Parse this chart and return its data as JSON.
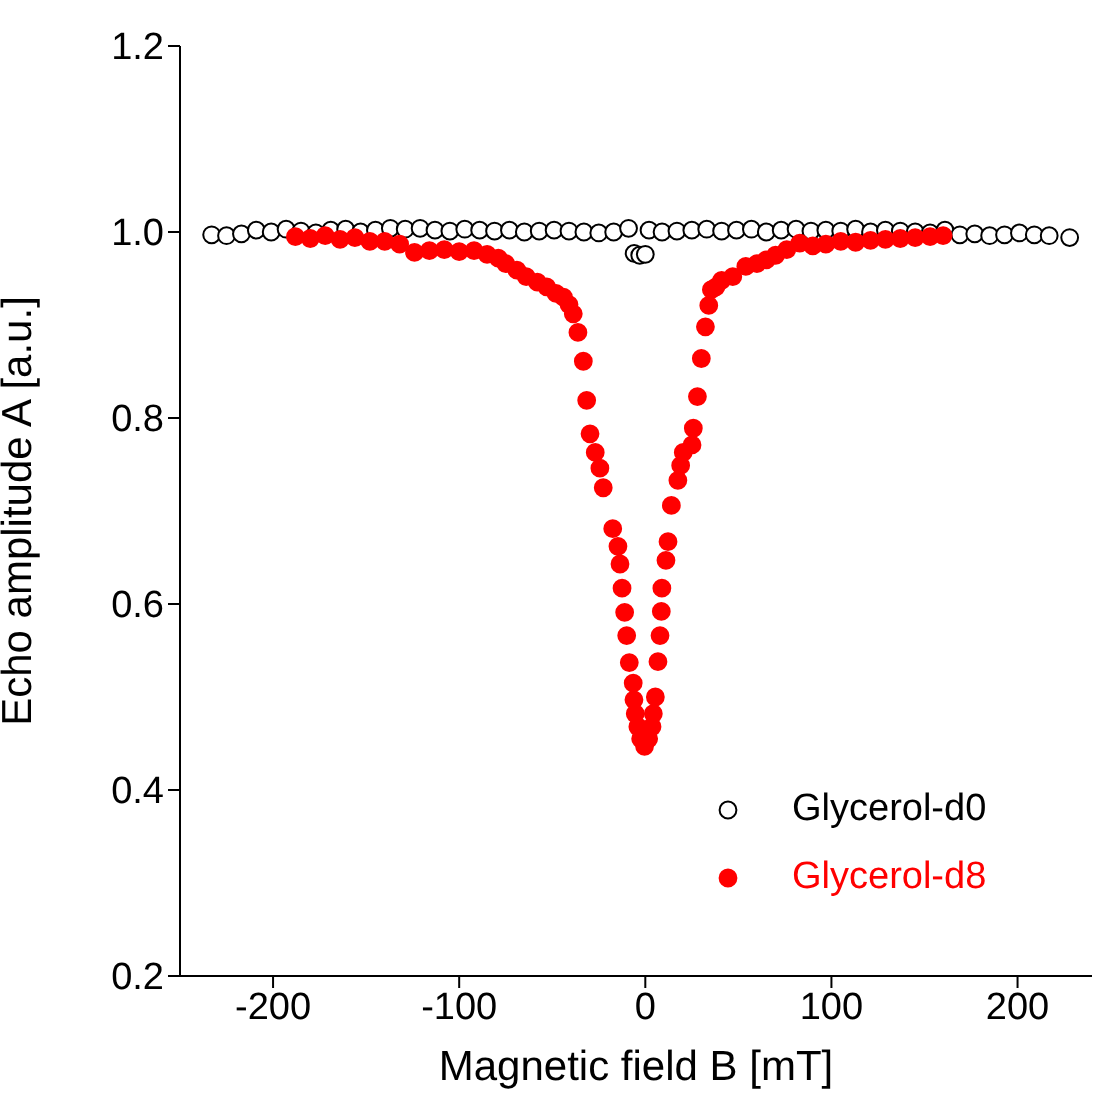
{
  "chart_data": {
    "type": "scatter",
    "xlabel": "Magnetic field B [mT]",
    "ylabel": "Echo amplitude A [a.u.]",
    "xlim": [
      -250,
      240
    ],
    "xticks": [
      -200,
      -100,
      0,
      100,
      200
    ],
    "ylim": [
      0.2,
      1.2
    ],
    "yticks": [
      0.2,
      0.4,
      0.6,
      0.8,
      {
        "value": 1,
        "label": "1.0"
      },
      1.2
    ],
    "marker": "circle",
    "legend": "bottom right",
    "grid": false,
    "series": [
      {
        "name": "Glycerol-d0",
        "color": "#000000",
        "x": [
          -233,
          -225,
          -217,
          -209,
          -201,
          -193,
          -185,
          -177,
          -169,
          -161,
          -153,
          -145,
          -137,
          -129,
          -121,
          -113,
          -105,
          -97,
          -89,
          -81,
          -73,
          -65,
          -57,
          -49,
          -41,
          -33,
          -25,
          -17,
          -9,
          -6,
          -3,
          0,
          2,
          9,
          17,
          25,
          33,
          41,
          49,
          57,
          65,
          73,
          81,
          89,
          97,
          105,
          113,
          121,
          129,
          137,
          145,
          153,
          161,
          169,
          177,
          185,
          193,
          201,
          209,
          217,
          228
        ],
        "values": [
          0.997,
          0.996,
          0.998,
          1.002,
          1.0,
          1.003,
          1.001,
          0.999,
          1.002,
          1.003,
          1.0,
          1.002,
          1.004,
          1.003,
          1.004,
          1.002,
          1.001,
          1.003,
          1.002,
          1.001,
          1.002,
          1.0,
          1.001,
          1.002,
          1.001,
          1.0,
          0.999,
          1.0,
          1.004,
          0.977,
          0.975,
          0.976,
          1.002,
          1.0,
          1.001,
          1.002,
          1.003,
          1.001,
          1.002,
          1.003,
          1.0,
          1.002,
          1.003,
          1.001,
          1.002,
          1.001,
          1.003,
          1.0,
          1.002,
          1.001,
          1.0,
          0.999,
          1.002,
          0.997,
          0.998,
          0.996,
          0.997,
          0.999,
          0.997,
          0.996,
          0.994
        ]
      },
      {
        "name": "Glycerol-d8",
        "color": "#ff0000",
        "x": [
          -188,
          -180,
          -172,
          -164,
          -156,
          -148,
          -140,
          -132,
          -124,
          -116,
          -108,
          -100,
          -92,
          -85,
          -79,
          -75,
          -69,
          -64,
          -58,
          -53,
          -48,
          -44,
          -41,
          -38.7,
          -36.2,
          -33.3,
          -31.5,
          -29.7,
          -26.9,
          -24.4,
          -22.6,
          -17.5,
          -14.7,
          -13.6,
          -12.5,
          -11.1,
          -10,
          -8.6,
          -6.5,
          -6.1,
          -5.4,
          -4,
          -2.5,
          -0.4,
          1.8,
          3.6,
          4.3,
          5.4,
          6.8,
          7.9,
          8.6,
          8.9,
          11.1,
          12.2,
          14,
          17.5,
          19,
          20.4,
          25.1,
          25.8,
          28,
          30.1,
          32.3,
          34.1,
          35.5,
          38,
          41,
          47,
          54,
          60,
          65,
          70,
          76,
          83,
          90,
          97,
          105,
          113,
          121,
          129,
          137,
          145,
          153,
          160
        ],
        "values": [
          0.995,
          0.993,
          0.996,
          0.992,
          0.994,
          0.99,
          0.99,
          0.987,
          0.978,
          0.98,
          0.981,
          0.979,
          0.98,
          0.976,
          0.972,
          0.966,
          0.959,
          0.952,
          0.946,
          0.941,
          0.934,
          0.93,
          0.922,
          0.912,
          0.892,
          0.861,
          0.819,
          0.783,
          0.763,
          0.746,
          0.725,
          0.681,
          0.662,
          0.643,
          0.617,
          0.591,
          0.566,
          0.537,
          0.515,
          0.497,
          0.482,
          0.468,
          0.455,
          0.447,
          0.455,
          0.468,
          0.482,
          0.5,
          0.538,
          0.566,
          0.592,
          0.617,
          0.647,
          0.667,
          0.706,
          0.733,
          0.749,
          0.763,
          0.771,
          0.789,
          0.823,
          0.864,
          0.898,
          0.921,
          0.938,
          0.941,
          0.948,
          0.952,
          0.963,
          0.966,
          0.97,
          0.975,
          0.981,
          0.988,
          0.985,
          0.987,
          0.99,
          0.989,
          0.991,
          0.992,
          0.993,
          0.994,
          0.995,
          0.996
        ]
      }
    ]
  }
}
